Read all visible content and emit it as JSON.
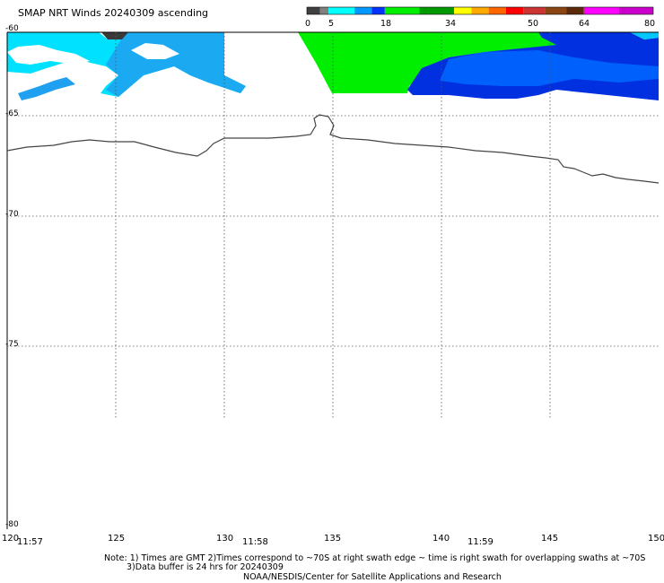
{
  "title": "SMAP NRT Winds 20240309 ascending",
  "colorbar": {
    "labels": [
      "0",
      "5",
      "18",
      "34",
      "50",
      "64",
      "80"
    ],
    "segments": [
      {
        "from": 0,
        "to": 5,
        "color": "#555555"
      },
      {
        "from": 5,
        "to": 18,
        "color": "#00aaff"
      },
      {
        "from": 18,
        "to": 34,
        "color": "#00c000"
      },
      {
        "from": 34,
        "to": 50,
        "color": "#ff6600"
      },
      {
        "from": 50,
        "to": 64,
        "color": "#a0522d"
      },
      {
        "from": 64,
        "to": 80,
        "color": "#cc00cc"
      }
    ]
  },
  "chart_data": {
    "type": "heatmap",
    "title": "SMAP NRT Winds 20240309 ascending",
    "x_ticks": [
      "120",
      "125",
      "130",
      "135",
      "140",
      "145",
      "150"
    ],
    "y_ticks": [
      "-60",
      "-65",
      "-70",
      "-75",
      "-80"
    ],
    "xlim": [
      120,
      150
    ],
    "ylim": [
      -80,
      -60
    ],
    "time_labels": [
      {
        "lon": 121,
        "text": "11:57"
      },
      {
        "lon": 131,
        "text": "11:58"
      },
      {
        "lon": 141.5,
        "text": "11:59"
      }
    ],
    "grid": true,
    "colorbar_range": [
      0,
      80
    ]
  },
  "notes": {
    "line1": "Note: 1) Times are GMT 2)Times correspond to ~70S at right swath edge ~ time is right swath for overlapping swaths at ~70S",
    "line2": "3)Data buffer is 24 hrs for 20240309",
    "line3": "NOAA/NESDIS/Center for Satellite Applications and Research"
  }
}
